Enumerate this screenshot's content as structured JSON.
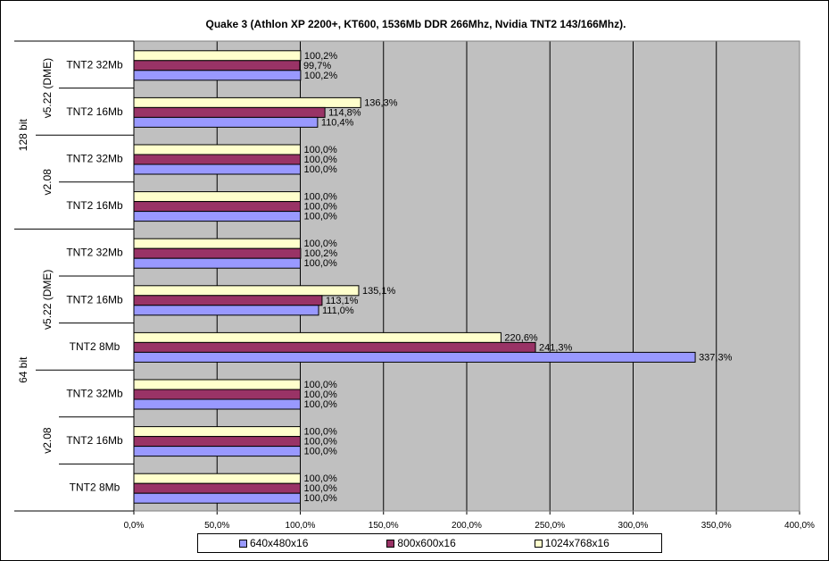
{
  "chart_data": {
    "type": "bar",
    "orientation": "horizontal",
    "title": "Quake 3 (Athlon XP 2200+, KT600, 1536Mb DDR 266Mhz, Nvidia TNT2 143/166Mhz).",
    "xlim": [
      0,
      400
    ],
    "x_ticks": [
      "0,0%",
      "50,0%",
      "100,0%",
      "150,0%",
      "200,0%",
      "250,0%",
      "300,0%",
      "350,0%",
      "400,0%"
    ],
    "groups": [
      {
        "name": "128 bit",
        "subgroups": [
          {
            "name": "v5.22 (DME)",
            "categories": [
              "TNT2 32Mb",
              "TNT2 16Mb"
            ]
          },
          {
            "name": "v2.08",
            "categories": [
              "TNT2 32Mb",
              "TNT2 16Mb"
            ]
          }
        ]
      },
      {
        "name": "64 bit",
        "subgroups": [
          {
            "name": "v5.22 (DME)",
            "categories": [
              "TNT2 32Mb",
              "TNT2 16Mb",
              "TNT2 8Mb"
            ]
          },
          {
            "name": "v2.08",
            "categories": [
              "TNT2 32Mb",
              "TNT2 16Mb",
              "TNT2 8Mb"
            ]
          }
        ]
      }
    ],
    "series": [
      {
        "name": "640x480x16",
        "color": "#9999ff",
        "values": [
          100.2,
          110.4,
          100.0,
          100.0,
          100.0,
          111.0,
          337.3,
          100.0,
          100.0,
          100.0
        ],
        "labels": [
          "100,2%",
          "110,4%",
          "100,0%",
          "100,0%",
          "100,0%",
          "111,0%",
          "337,3%",
          "100,0%",
          "100,0%",
          "100,0%"
        ]
      },
      {
        "name": "800x600x16",
        "color": "#993366",
        "values": [
          99.7,
          114.8,
          100.0,
          100.0,
          100.2,
          113.1,
          241.3,
          100.0,
          100.0,
          100.0
        ],
        "labels": [
          "99,7%",
          "114,8%",
          "100,0%",
          "100,0%",
          "100,2%",
          "113,1%",
          "241,3%",
          "100,0%",
          "100,0%",
          "100,0%"
        ]
      },
      {
        "name": "1024x768x16",
        "color": "#ffffcc",
        "values": [
          100.2,
          136.3,
          100.0,
          100.0,
          100.0,
          135.1,
          220.6,
          100.0,
          100.0,
          100.0
        ],
        "labels": [
          "100,2%",
          "136,3%",
          "100,0%",
          "100,0%",
          "100,0%",
          "135,1%",
          "220,6%",
          "100,0%",
          "100,0%",
          "100,0%"
        ]
      }
    ],
    "plot_background": "#c0c0c0",
    "gridlines": "vertical",
    "legend_position": "bottom"
  }
}
